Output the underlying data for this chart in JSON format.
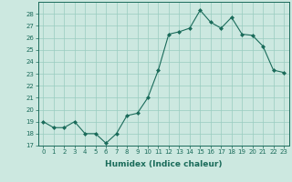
{
  "xlabel": "Humidex (Indice chaleur)",
  "x": [
    0,
    1,
    2,
    3,
    4,
    5,
    6,
    7,
    8,
    9,
    10,
    11,
    12,
    13,
    14,
    15,
    16,
    17,
    18,
    19,
    20,
    21,
    22,
    23
  ],
  "y": [
    19,
    18.5,
    18.5,
    19,
    18,
    18,
    17.2,
    18,
    19.5,
    19.7,
    21,
    23.3,
    26.3,
    26.5,
    26.8,
    28.3,
    27.3,
    26.8,
    27.7,
    26.3,
    26.2,
    25.3,
    23.3,
    23.1
  ],
  "line_color": "#1a6b5a",
  "marker": "D",
  "marker_size": 2.0,
  "bg_color": "#cce8e0",
  "grid_color": "#99ccc0",
  "ylim": [
    17,
    29
  ],
  "yticks": [
    17,
    18,
    19,
    20,
    21,
    22,
    23,
    24,
    25,
    26,
    27,
    28
  ],
  "xlim": [
    -0.5,
    23.5
  ],
  "xticks": [
    0,
    1,
    2,
    3,
    4,
    5,
    6,
    7,
    8,
    9,
    10,
    11,
    12,
    13,
    14,
    15,
    16,
    17,
    18,
    19,
    20,
    21,
    22,
    23
  ],
  "tick_color": "#1a6b5a",
  "label_color": "#1a6b5a",
  "spine_color": "#1a6b5a",
  "tick_fontsize": 5.0,
  "xlabel_fontsize": 6.5
}
